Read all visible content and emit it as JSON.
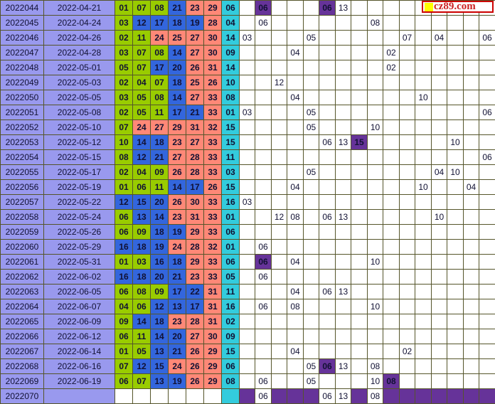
{
  "watermark": {
    "square_icon": "yellow-square-icon",
    "text": "cz89.com"
  },
  "colors": {
    "period_bg": "#9999ee",
    "red_zone1_bg": "#99cc00",
    "red_zone2_bg": "#3366dd",
    "red_zone3_bg": "#ff8877",
    "blue_ball_bg": "#33ccdd",
    "highlight_bg": "#663399",
    "grid_border": "#77772f",
    "watermark_red": "#cc0000",
    "watermark_square": "#ffff00"
  },
  "chart_data": {
    "type": "table",
    "grid_columns": 16,
    "rows": [
      {
        "period": "2022044",
        "date": "2022-04-21",
        "reds": [
          "01",
          "07",
          "08",
          "21",
          "23",
          "29"
        ],
        "blue": "06",
        "cells": [
          {
            "c": 2,
            "v": "06",
            "hl": true
          },
          {
            "c": 6,
            "v": "06",
            "hl": true
          },
          {
            "c": 7,
            "v": "13"
          }
        ]
      },
      {
        "period": "2022045",
        "date": "2022-04-24",
        "reds": [
          "03",
          "12",
          "17",
          "18",
          "19",
          "28"
        ],
        "blue": "04",
        "cells": [
          {
            "c": 2,
            "v": "06"
          },
          {
            "c": 9,
            "v": "08"
          }
        ]
      },
      {
        "period": "2022046",
        "date": "2022-04-26",
        "reds": [
          "02",
          "11",
          "24",
          "25",
          "27",
          "30"
        ],
        "blue": "14",
        "cells": [
          {
            "c": 1,
            "v": "03"
          },
          {
            "c": 5,
            "v": "05"
          },
          {
            "c": 11,
            "v": "07"
          },
          {
            "c": 13,
            "v": "04"
          },
          {
            "c": 16,
            "v": "06"
          }
        ]
      },
      {
        "period": "2022047",
        "date": "2022-04-28",
        "reds": [
          "03",
          "07",
          "08",
          "14",
          "27",
          "30"
        ],
        "blue": "09",
        "cells": [
          {
            "c": 4,
            "v": "04"
          },
          {
            "c": 10,
            "v": "02"
          }
        ]
      },
      {
        "period": "2022048",
        "date": "2022-05-01",
        "reds": [
          "05",
          "07",
          "17",
          "20",
          "26",
          "31"
        ],
        "blue": "14",
        "cells": [
          {
            "c": 10,
            "v": "02"
          }
        ]
      },
      {
        "period": "2022049",
        "date": "2022-05-03",
        "reds": [
          "02",
          "04",
          "07",
          "18",
          "25",
          "26"
        ],
        "blue": "10",
        "cells": [
          {
            "c": 3,
            "v": "12"
          }
        ]
      },
      {
        "period": "2022050",
        "date": "2022-05-05",
        "reds": [
          "03",
          "05",
          "08",
          "14",
          "27",
          "33"
        ],
        "blue": "08",
        "cells": [
          {
            "c": 4,
            "v": "04"
          },
          {
            "c": 12,
            "v": "10"
          }
        ]
      },
      {
        "period": "2022051",
        "date": "2022-05-08",
        "reds": [
          "02",
          "05",
          "11",
          "17",
          "21",
          "33"
        ],
        "blue": "01",
        "cells": [
          {
            "c": 1,
            "v": "03"
          },
          {
            "c": 5,
            "v": "05"
          },
          {
            "c": 16,
            "v": "06"
          }
        ]
      },
      {
        "period": "2022052",
        "date": "2022-05-10",
        "reds": [
          "07",
          "24",
          "27",
          "29",
          "31",
          "32"
        ],
        "blue": "15",
        "cells": [
          {
            "c": 5,
            "v": "05"
          },
          {
            "c": 9,
            "v": "10"
          }
        ]
      },
      {
        "period": "2022053",
        "date": "2022-05-12",
        "reds": [
          "10",
          "14",
          "18",
          "23",
          "27",
          "33"
        ],
        "blue": "15",
        "cells": [
          {
            "c": 6,
            "v": "06"
          },
          {
            "c": 7,
            "v": "13"
          },
          {
            "c": 8,
            "v": "15",
            "hl": true
          },
          {
            "c": 14,
            "v": "10"
          }
        ]
      },
      {
        "period": "2022054",
        "date": "2022-05-15",
        "reds": [
          "08",
          "12",
          "21",
          "27",
          "28",
          "33"
        ],
        "blue": "11",
        "cells": [
          {
            "c": 16,
            "v": "06"
          }
        ]
      },
      {
        "period": "2022055",
        "date": "2022-05-17",
        "reds": [
          "02",
          "04",
          "09",
          "26",
          "28",
          "33"
        ],
        "blue": "03",
        "cells": [
          {
            "c": 5,
            "v": "05"
          },
          {
            "c": 13,
            "v": "04"
          },
          {
            "c": 14,
            "v": "10"
          }
        ]
      },
      {
        "period": "2022056",
        "date": "2022-05-19",
        "reds": [
          "01",
          "06",
          "11",
          "14",
          "17",
          "26"
        ],
        "blue": "15",
        "cells": [
          {
            "c": 4,
            "v": "04"
          },
          {
            "c": 12,
            "v": "10"
          },
          {
            "c": 15,
            "v": "04"
          }
        ]
      },
      {
        "period": "2022057",
        "date": "2022-05-22",
        "reds": [
          "12",
          "15",
          "20",
          "26",
          "30",
          "33"
        ],
        "blue": "16",
        "cells": [
          {
            "c": 1,
            "v": "03"
          }
        ]
      },
      {
        "period": "2022058",
        "date": "2022-05-24",
        "reds": [
          "06",
          "13",
          "14",
          "23",
          "31",
          "33"
        ],
        "blue": "01",
        "cells": [
          {
            "c": 3,
            "v": "12"
          },
          {
            "c": 4,
            "v": "08"
          },
          {
            "c": 6,
            "v": "06"
          },
          {
            "c": 7,
            "v": "13"
          },
          {
            "c": 13,
            "v": "10"
          }
        ]
      },
      {
        "period": "2022059",
        "date": "2022-05-26",
        "reds": [
          "06",
          "09",
          "18",
          "19",
          "29",
          "33"
        ],
        "blue": "06",
        "cells": []
      },
      {
        "period": "2022060",
        "date": "2022-05-29",
        "reds": [
          "16",
          "18",
          "19",
          "24",
          "28",
          "32"
        ],
        "blue": "01",
        "cells": [
          {
            "c": 2,
            "v": "06"
          }
        ]
      },
      {
        "period": "2022061",
        "date": "2022-05-31",
        "reds": [
          "01",
          "03",
          "16",
          "18",
          "29",
          "33"
        ],
        "blue": "06",
        "cells": [
          {
            "c": 2,
            "v": "06",
            "hl": true
          },
          {
            "c": 4,
            "v": "04"
          },
          {
            "c": 9,
            "v": "10"
          }
        ]
      },
      {
        "period": "2022062",
        "date": "2022-06-02",
        "reds": [
          "16",
          "18",
          "20",
          "21",
          "23",
          "33"
        ],
        "blue": "05",
        "cells": [
          {
            "c": 2,
            "v": "06"
          }
        ]
      },
      {
        "period": "2022063",
        "date": "2022-06-05",
        "reds": [
          "06",
          "08",
          "09",
          "17",
          "22",
          "31"
        ],
        "blue": "11",
        "cells": [
          {
            "c": 4,
            "v": "04"
          },
          {
            "c": 6,
            "v": "06"
          },
          {
            "c": 7,
            "v": "13"
          }
        ]
      },
      {
        "period": "2022064",
        "date": "2022-06-07",
        "reds": [
          "04",
          "06",
          "12",
          "13",
          "17",
          "31"
        ],
        "blue": "16",
        "cells": [
          {
            "c": 2,
            "v": "06"
          },
          {
            "c": 4,
            "v": "08"
          },
          {
            "c": 9,
            "v": "10"
          }
        ]
      },
      {
        "period": "2022065",
        "date": "2022-06-09",
        "reds": [
          "09",
          "14",
          "18",
          "23",
          "28",
          "31"
        ],
        "blue": "02",
        "cells": []
      },
      {
        "period": "2022066",
        "date": "2022-06-12",
        "reds": [
          "06",
          "11",
          "14",
          "20",
          "27",
          "30"
        ],
        "blue": "09",
        "cells": []
      },
      {
        "period": "2022067",
        "date": "2022-06-14",
        "reds": [
          "01",
          "05",
          "13",
          "21",
          "26",
          "29"
        ],
        "blue": "15",
        "cells": [
          {
            "c": 4,
            "v": "04"
          },
          {
            "c": 11,
            "v": "02"
          }
        ]
      },
      {
        "period": "2022068",
        "date": "2022-06-16",
        "reds": [
          "07",
          "12",
          "15",
          "24",
          "26",
          "29"
        ],
        "blue": "06",
        "cells": [
          {
            "c": 5,
            "v": "05"
          },
          {
            "c": 6,
            "v": "06",
            "hl": true
          },
          {
            "c": 7,
            "v": "13"
          },
          {
            "c": 9,
            "v": "08"
          }
        ]
      },
      {
        "period": "2022069",
        "date": "2022-06-19",
        "reds": [
          "06",
          "07",
          "13",
          "19",
          "26",
          "29"
        ],
        "blue": "08",
        "cells": [
          {
            "c": 2,
            "v": "06"
          },
          {
            "c": 5,
            "v": "05"
          },
          {
            "c": 9,
            "v": "10"
          },
          {
            "c": 10,
            "v": "08",
            "hl": true
          }
        ]
      },
      {
        "period": "2022070",
        "date": "",
        "reds": [
          "",
          "",
          "",
          "",
          "",
          ""
        ],
        "blue": "",
        "purple_row": true,
        "cells": [
          {
            "c": 2,
            "v": "06"
          },
          {
            "c": 6,
            "v": "06"
          },
          {
            "c": 7,
            "v": "13"
          },
          {
            "c": 9,
            "v": "08"
          }
        ]
      }
    ]
  }
}
